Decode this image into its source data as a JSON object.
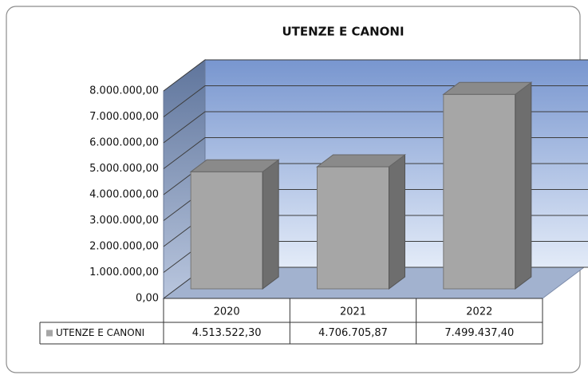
{
  "chart_data": {
    "type": "bar",
    "title": "UTENZE E CANONI",
    "categories": [
      "2020",
      "2021",
      "2022"
    ],
    "series": [
      {
        "name": "UTENZE E CANONI",
        "color": "#a6a6a6",
        "values": [
          4513522.3,
          4706705.87,
          7499437.4
        ],
        "value_labels": [
          "4.513.522,30",
          "4.706.705,87",
          "7.499.437,40"
        ]
      }
    ],
    "ylim": [
      0,
      8000000
    ],
    "yticks": [
      {
        "value": 0,
        "label": "0,00"
      },
      {
        "value": 1000000,
        "label": "1.000.000,00"
      },
      {
        "value": 2000000,
        "label": "2.000.000,00"
      },
      {
        "value": 3000000,
        "label": "3.000.000,00"
      },
      {
        "value": 4000000,
        "label": "4.000.000,00"
      },
      {
        "value": 5000000,
        "label": "5.000.000,00"
      },
      {
        "value": 6000000,
        "label": "6.000.000,00"
      },
      {
        "value": 7000000,
        "label": "7.000.000,00"
      },
      {
        "value": 8000000,
        "label": "8.000.000,00"
      }
    ],
    "grid": true,
    "legend": "bottom"
  }
}
